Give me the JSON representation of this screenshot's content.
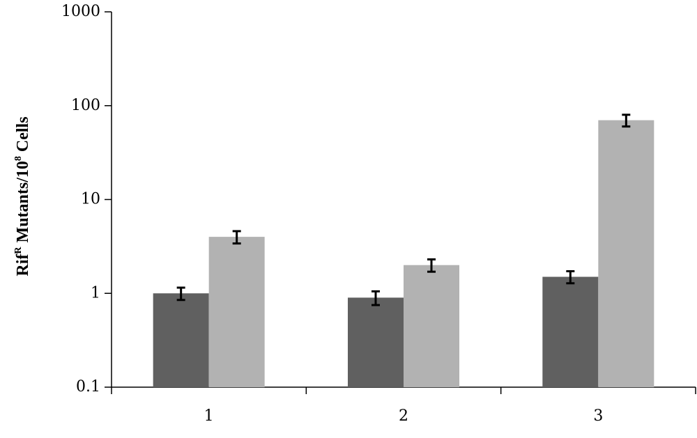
{
  "chart_data": {
    "type": "bar",
    "log_scale": true,
    "ylabel": [
      {
        "text": "Rif"
      },
      {
        "text": "R",
        "sup": true
      },
      {
        "text": " Mutants/10"
      },
      {
        "text": "8",
        "sup": true
      },
      {
        "text": " Cells"
      }
    ],
    "categories": [
      "1",
      "2",
      "3"
    ],
    "series": [
      {
        "color": "#606060",
        "values": [
          1.0,
          0.9,
          1.5
        ],
        "errors": [
          0.15,
          0.15,
          0.22
        ]
      },
      {
        "color": "#b2b2b2",
        "values": [
          4.0,
          2.0,
          70
        ],
        "errors": [
          0.6,
          0.3,
          10
        ]
      }
    ],
    "ylim": [
      0.1,
      1000
    ],
    "yticks": [
      0.1,
      1,
      10,
      100,
      1000
    ],
    "grid": false
  }
}
